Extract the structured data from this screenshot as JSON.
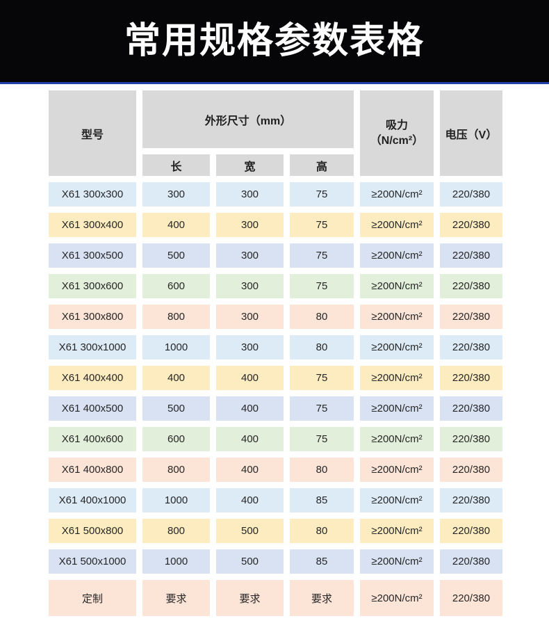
{
  "title": "常用规格参数表格",
  "table": {
    "headers": {
      "model": "型号",
      "dimensions": "外形尺寸（mm）",
      "length": "长",
      "width": "宽",
      "height": "高",
      "suction_line1": "吸力",
      "suction_line2": "（N/cm²）",
      "voltage": "电压（V）"
    },
    "rows": [
      {
        "model": "X61 300x300",
        "length": "300",
        "width": "300",
        "height": "75",
        "suction": "≥200N/cm²",
        "voltage": "220/380",
        "color": "blue"
      },
      {
        "model": "X61 300x400",
        "length": "400",
        "width": "300",
        "height": "75",
        "suction": "≥200N/cm²",
        "voltage": "220/380",
        "color": "yellow"
      },
      {
        "model": "X61 300x500",
        "length": "500",
        "width": "300",
        "height": "75",
        "suction": "≥200N/cm²",
        "voltage": "220/380",
        "color": "lavender"
      },
      {
        "model": "X61 300x600",
        "length": "600",
        "width": "300",
        "height": "75",
        "suction": "≥200N/cm²",
        "voltage": "220/380",
        "color": "green"
      },
      {
        "model": "X61 300x800",
        "length": "800",
        "width": "300",
        "height": "80",
        "suction": "≥200N/cm²",
        "voltage": "220/380",
        "color": "peach"
      },
      {
        "model": "X61 300x1000",
        "length": "1000",
        "width": "300",
        "height": "80",
        "suction": "≥200N/cm²",
        "voltage": "220/380",
        "color": "blue"
      },
      {
        "model": "X61 400x400",
        "length": "400",
        "width": "400",
        "height": "75",
        "suction": "≥200N/cm²",
        "voltage": "220/380",
        "color": "yellow"
      },
      {
        "model": "X61 400x500",
        "length": "500",
        "width": "400",
        "height": "75",
        "suction": "≥200N/cm²",
        "voltage": "220/380",
        "color": "lavender"
      },
      {
        "model": "X61 400x600",
        "length": "600",
        "width": "400",
        "height": "75",
        "suction": "≥200N/cm²",
        "voltage": "220/380",
        "color": "green"
      },
      {
        "model": "X61 400x800",
        "length": "800",
        "width": "400",
        "height": "80",
        "suction": "≥200N/cm²",
        "voltage": "220/380",
        "color": "peach"
      },
      {
        "model": "X61 400x1000",
        "length": "1000",
        "width": "400",
        "height": "85",
        "suction": "≥200N/cm²",
        "voltage": "220/380",
        "color": "blue"
      },
      {
        "model": "X61 500x800",
        "length": "800",
        "width": "500",
        "height": "80",
        "suction": "≥200N/cm²",
        "voltage": "220/380",
        "color": "yellow"
      },
      {
        "model": "X61 500x1000",
        "length": "1000",
        "width": "500",
        "height": "85",
        "suction": "≥200N/cm²",
        "voltage": "220/380",
        "color": "lavender"
      },
      {
        "model": "定制",
        "length": "要求",
        "width": "要求",
        "height": "要求",
        "suction": "≥200N/cm²",
        "voltage": "220/380",
        "color": "peach"
      }
    ]
  },
  "colors": {
    "header_gray": "#d9d9d9",
    "banner_black": "#060608",
    "banner_line_blue": "#1e41ad",
    "blue": "#ddebf7",
    "yellow": "#fcecc0",
    "lavender": "#d9e2f3",
    "green": "#e2efda",
    "peach": "#fce4d6"
  }
}
